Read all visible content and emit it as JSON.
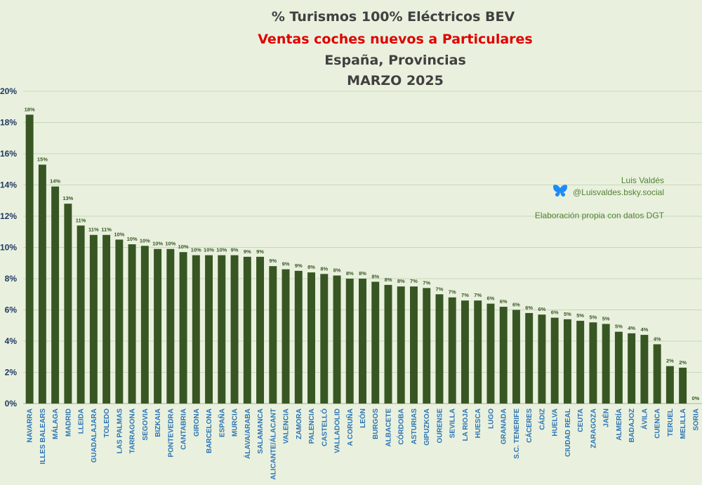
{
  "credits": {
    "author": "Luis Valdés",
    "handle": "@Luisvaldes.bsky.social",
    "source": "Elaboración propia con datos DGT",
    "handle_icon": "butterfly-icon",
    "icon_color": "#1d8cf8"
  },
  "colors": {
    "bar": "#375623",
    "background": "#e9f1de",
    "grid": "#c9d6bb",
    "title": "#404040",
    "subtitle": "#e00000",
    "ytick": "#1f3864",
    "xtick": "#2e75b6",
    "label": "#375623"
  },
  "chart_data": {
    "type": "bar",
    "title_lines": [
      "% Turismos 100% Eléctricos BEV",
      "Ventas coches nuevos a Particulares",
      "España, Provincias",
      "MARZO 2025"
    ],
    "xlabel": "",
    "ylabel": "",
    "ylim": [
      0,
      20
    ],
    "yticks": [
      "0%",
      "2%",
      "4%",
      "6%",
      "8%",
      "10%",
      "12%",
      "14%",
      "16%",
      "18%",
      "20%"
    ],
    "grid": true,
    "categories": [
      "NAVARRA",
      "ILLES BALEARS",
      "MÁLAGA",
      "MADRID",
      "LLEIDA",
      "GUADALAJARA",
      "TOLEDO",
      "LAS PALMAS",
      "TARRAGONA",
      "SEGOVIA",
      "BIZKAIA",
      "PONTEVEDRA",
      "CANTABRIA",
      "GIRONA",
      "BARCELONA",
      "ESPAÑA",
      "MURCIA",
      "ÁLAVA/ARABA",
      "SALAMANCA",
      "ALICANTE/ÁLACANT",
      "VALENCIA",
      "ZAMORA",
      "PALENCIA",
      "CASTELLÓ",
      "VALLADOLID",
      "A CORUÑA",
      "LEÓN",
      "BURGOS",
      "ALBACETE",
      "CÓRDOBA",
      "ASTURIAS",
      "GIPUZKOA",
      "OURENSE",
      "SEVILLA",
      "LA RIOJA",
      "HUESCA",
      "LUGO",
      "GRANADA",
      "S.C. TENERIFE",
      "CÁCERES",
      "CÁDIZ",
      "HUELVA",
      "CIUDAD REAL",
      "CEUTA",
      "ZARAGOZA",
      "JAÉN",
      "ALMERÍA",
      "BADAJOZ",
      "ÁVILA",
      "CUENCA",
      "TERUEL",
      "MELILLA",
      "SORIA"
    ],
    "values": [
      18.5,
      15.3,
      13.9,
      12.8,
      11.4,
      10.8,
      10.8,
      10.5,
      10.2,
      10.1,
      9.9,
      9.9,
      9.7,
      9.5,
      9.5,
      9.5,
      9.5,
      9.4,
      9.4,
      8.8,
      8.6,
      8.5,
      8.4,
      8.3,
      8.2,
      8.0,
      8.0,
      7.8,
      7.6,
      7.5,
      7.5,
      7.4,
      7.0,
      6.8,
      6.6,
      6.6,
      6.4,
      6.2,
      6.0,
      5.8,
      5.7,
      5.5,
      5.4,
      5.3,
      5.2,
      5.1,
      4.6,
      4.5,
      4.4,
      3.8,
      2.4,
      2.3,
      0.0
    ],
    "data_labels": [
      "18%",
      "15%",
      "14%",
      "13%",
      "11%",
      "11%",
      "11%",
      "10%",
      "10%",
      "10%",
      "10%",
      "10%",
      "10%",
      "10%",
      "10%",
      "10%",
      "9%",
      "9%",
      "9%",
      "9%",
      "9%",
      "9%",
      "8%",
      "8%",
      "8%",
      "8%",
      "8%",
      "8%",
      "8%",
      "8%",
      "7%",
      "7%",
      "7%",
      "7%",
      "7%",
      "7%",
      "6%",
      "6%",
      "6%",
      "6%",
      "6%",
      "6%",
      "5%",
      "5%",
      "5%",
      "5%",
      "5%",
      "4%",
      "4%",
      "4%",
      "2%",
      "2%",
      "0%"
    ]
  }
}
